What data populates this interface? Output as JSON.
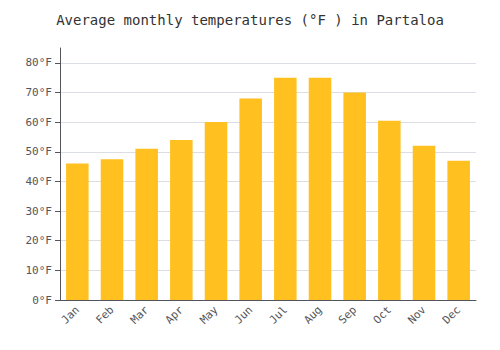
{
  "chart_data": {
    "type": "bar",
    "title": "Average monthly temperatures (°F ) in Partaloa",
    "categories": [
      "Jan",
      "Feb",
      "Mar",
      "Apr",
      "May",
      "Jun",
      "Jul",
      "Aug",
      "Sep",
      "Oct",
      "Nov",
      "Dec"
    ],
    "values": [
      46,
      47.5,
      51,
      54,
      60,
      68,
      75,
      75,
      70,
      60.5,
      52,
      47
    ],
    "color": "#FFC020",
    "ylim": [
      0,
      85
    ],
    "yticks": [
      {
        "value": 0,
        "label": "0°F"
      },
      {
        "value": 10,
        "label": "10°F"
      },
      {
        "value": 20,
        "label": "20°F"
      },
      {
        "value": 30,
        "label": "30°F"
      },
      {
        "value": 40,
        "label": "40°F"
      },
      {
        "value": 50,
        "label": "50°F"
      },
      {
        "value": 60,
        "label": "60°F"
      },
      {
        "value": 70,
        "label": "70°F"
      },
      {
        "value": 80,
        "label": "80°F"
      }
    ],
    "grid": true
  }
}
